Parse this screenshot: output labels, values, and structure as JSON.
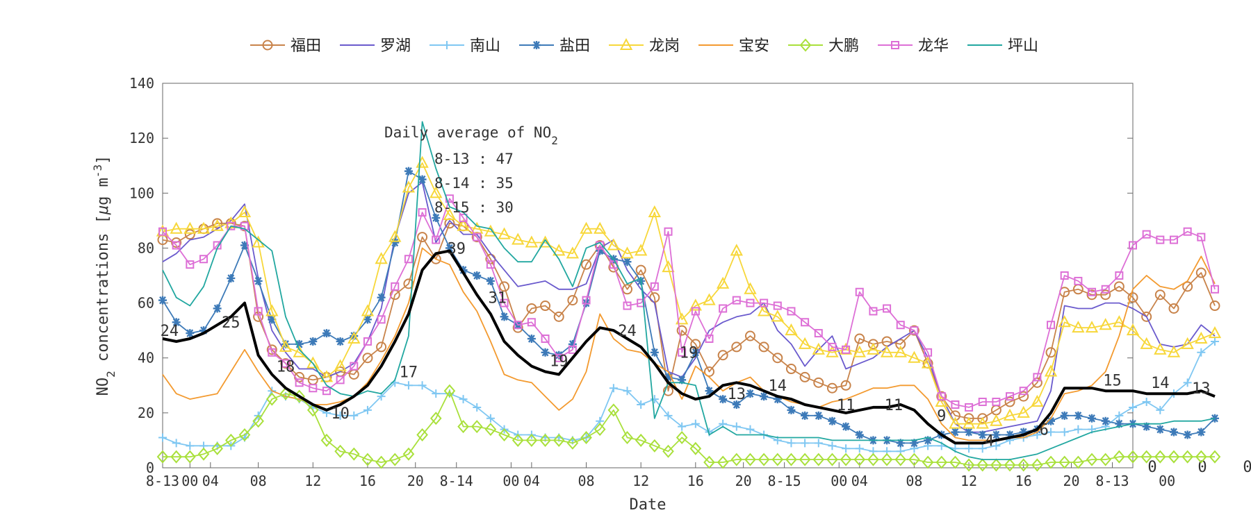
{
  "chart_data": {
    "type": "line",
    "xlabel": "Date",
    "ylabel": "NO2 concentrations [μg m-3]",
    "ylabel_parts": {
      "pre": "NO",
      "sub": "2",
      "mid": " concentrations [",
      "mu": "μ",
      "mid2": "g m",
      "sup": "-3",
      "post": "]"
    },
    "ylim": [
      0,
      140
    ],
    "xlim": [
      0,
      71
    ],
    "x_unit": "hours since 8-13 00",
    "yticks": [
      0,
      20,
      40,
      60,
      80,
      100,
      120,
      140
    ],
    "xtick_labels": [
      {
        "x": 0,
        "label": "8-13"
      },
      {
        "x": 2,
        "label": "00"
      },
      {
        "x": 3.5,
        "label": "04"
      },
      {
        "x": 7,
        "label": "08"
      },
      {
        "x": 11,
        "label": "12"
      },
      {
        "x": 15,
        "label": "16"
      },
      {
        "x": 18.5,
        "label": "20"
      },
      {
        "x": 21.5,
        "label": "8-14"
      },
      {
        "x": 25.5,
        "label": "00"
      },
      {
        "x": 27,
        "label": "04"
      },
      {
        "x": 31,
        "label": "08"
      },
      {
        "x": 35,
        "label": "12"
      },
      {
        "x": 39,
        "label": "16"
      },
      {
        "x": 42.5,
        "label": "20"
      },
      {
        "x": 45.5,
        "label": "8-15"
      },
      {
        "x": 49.5,
        "label": "00"
      },
      {
        "x": 51,
        "label": "04"
      },
      {
        "x": 55,
        "label": "08"
      },
      {
        "x": 59,
        "label": "12"
      },
      {
        "x": 63,
        "label": "16"
      },
      {
        "x": 66.5,
        "label": "20"
      },
      {
        "x": 69.5,
        "label": "8-13"
      },
      {
        "x": 73.5,
        "label": "00"
      }
    ],
    "right_labels": [
      "0",
      "0",
      "0"
    ],
    "grid": false,
    "legend_position": "top",
    "annotation": {
      "title": "Daily average of NO",
      "title_sub": "2",
      "lines": [
        "8-13 : 47",
        "8-14 : 35",
        "8-15 : 30"
      ]
    },
    "series": [
      {
        "name": "福田",
        "color": "#c8834a",
        "marker": "circle",
        "marker_every": 1,
        "values": [
          83,
          82,
          85,
          87,
          89,
          89,
          88,
          55,
          43,
          38,
          33,
          32,
          33,
          35,
          34,
          40,
          44,
          63,
          67,
          84,
          76,
          89,
          88,
          84,
          76,
          66,
          51,
          58,
          59,
          55,
          61,
          74,
          81,
          73,
          65,
          72,
          62,
          28,
          50,
          45,
          35,
          41,
          44,
          48,
          44,
          40,
          36,
          33,
          31,
          29,
          30,
          47,
          45,
          46,
          45,
          50,
          38,
          26,
          19,
          18,
          18,
          21,
          24,
          26,
          31,
          42,
          64,
          65,
          63,
          63,
          66,
          62,
          55,
          63,
          58,
          66,
          71,
          59
        ]
      },
      {
        "name": "罗湖",
        "color": "#6a5acd",
        "marker": "none",
        "values": [
          75,
          78,
          83,
          84,
          87,
          90,
          96,
          69,
          50,
          42,
          36,
          36,
          33,
          35,
          38,
          46,
          58,
          84,
          100,
          104,
          82,
          90,
          85,
          85,
          78,
          72,
          66,
          67,
          68,
          65,
          65,
          67,
          80,
          83,
          72,
          65,
          60,
          35,
          33,
          40,
          50,
          53,
          55,
          56,
          60,
          50,
          45,
          37,
          43,
          48,
          36,
          38,
          40,
          44,
          47,
          50,
          40,
          26,
          16,
          13,
          13,
          14,
          15,
          16,
          17,
          28,
          59,
          58,
          58,
          60,
          60,
          58,
          55,
          45,
          44,
          45,
          52,
          48
        ]
      },
      {
        "name": "南山",
        "color": "#7fc7f2",
        "marker": "plus",
        "marker_every": 1,
        "values": [
          11,
          9,
          8,
          8,
          8,
          8,
          11,
          19,
          28,
          26,
          25,
          22,
          20,
          19,
          19,
          21,
          26,
          31,
          30,
          30,
          27,
          27,
          25,
          22,
          18,
          14,
          12,
          12,
          11,
          11,
          10,
          11,
          17,
          29,
          28,
          23,
          25,
          19,
          15,
          16,
          13,
          16,
          15,
          14,
          12,
          10,
          9,
          9,
          9,
          8,
          7,
          7,
          6,
          6,
          6,
          7,
          8,
          8,
          7,
          7,
          7,
          8,
          10,
          11,
          12,
          13,
          13,
          14,
          14,
          15,
          19,
          22,
          24,
          21,
          27,
          31,
          42,
          46
        ]
      },
      {
        "name": "盐田",
        "color": "#3d7ab8",
        "marker": "star",
        "marker_every": 1,
        "values": [
          61,
          53,
          49,
          50,
          58,
          69,
          81,
          68,
          54,
          45,
          45,
          46,
          49,
          46,
          48,
          54,
          62,
          82,
          108,
          105,
          91,
          80,
          72,
          70,
          68,
          55,
          52,
          47,
          42,
          41,
          45,
          60,
          79,
          76,
          75,
          68,
          42,
          33,
          32,
          42,
          28,
          25,
          23,
          27,
          26,
          25,
          21,
          19,
          19,
          17,
          15,
          12,
          10,
          10,
          9,
          9,
          10,
          12,
          13,
          13,
          12,
          12,
          12,
          13,
          14,
          17,
          19,
          19,
          18,
          17,
          16,
          16,
          15,
          14,
          13,
          12,
          13,
          18
        ]
      },
      {
        "name": "龙岗",
        "color": "#f7d73a",
        "marker": "triangle",
        "marker_every": 1,
        "values": [
          86,
          87,
          87,
          87,
          88,
          89,
          93,
          82,
          57,
          44,
          42,
          38,
          33,
          37,
          47,
          57,
          76,
          84,
          102,
          111,
          100,
          92,
          88,
          87,
          86,
          85,
          83,
          82,
          82,
          79,
          78,
          87,
          87,
          81,
          78,
          79,
          93,
          73,
          54,
          59,
          61,
          67,
          79,
          65,
          57,
          55,
          50,
          45,
          43,
          42,
          43,
          42,
          43,
          42,
          42,
          40,
          38,
          24,
          16,
          16,
          16,
          17,
          19,
          20,
          24,
          35,
          53,
          51,
          51,
          52,
          53,
          50,
          45,
          43,
          42,
          45,
          47,
          49
        ]
      },
      {
        "name": "宝安",
        "color": "#f39a2f",
        "marker": "none",
        "values": [
          34,
          27,
          25,
          26,
          27,
          35,
          43,
          35,
          28,
          26,
          25,
          23,
          23,
          24,
          26,
          31,
          39,
          48,
          60,
          80,
          76,
          74,
          64,
          57,
          46,
          34,
          32,
          31,
          26,
          21,
          25,
          35,
          56,
          47,
          43,
          42,
          38,
          35,
          25,
          37,
          33,
          28,
          31,
          33,
          28,
          26,
          24,
          23,
          22,
          24,
          25,
          27,
          29,
          29,
          30,
          30,
          25,
          16,
          11,
          10,
          10,
          10,
          11,
          11,
          13,
          18,
          27,
          28,
          30,
          35,
          48,
          65,
          70,
          66,
          65,
          68,
          77,
          67
        ]
      },
      {
        "name": "大鹏",
        "color": "#a9e03b",
        "marker": "diamond",
        "marker_every": 1,
        "values": [
          4,
          4,
          4,
          5,
          7,
          10,
          12,
          17,
          25,
          27,
          26,
          21,
          10,
          6,
          5,
          3,
          2,
          3,
          5,
          12,
          18,
          28,
          15,
          15,
          14,
          12,
          10,
          10,
          10,
          10,
          9,
          11,
          14,
          21,
          11,
          10,
          8,
          6,
          11,
          7,
          2,
          2,
          3,
          3,
          3,
          3,
          3,
          3,
          3,
          3,
          3,
          3,
          3,
          3,
          3,
          3,
          2,
          2,
          2,
          1,
          1,
          1,
          1,
          1,
          1,
          2,
          2,
          2,
          3,
          3,
          4,
          4,
          4,
          4,
          4,
          4,
          4,
          4
        ]
      },
      {
        "name": "龙华",
        "color": "#dd6fd6",
        "marker": "square",
        "marker_every": 1,
        "values": [
          86,
          81,
          74,
          76,
          81,
          88,
          88,
          57,
          42,
          38,
          31,
          29,
          28,
          32,
          37,
          46,
          54,
          66,
          76,
          93,
          83,
          98,
          91,
          84,
          74,
          60,
          52,
          53,
          47,
          40,
          43,
          61,
          81,
          74,
          59,
          60,
          66,
          86,
          42,
          57,
          47,
          58,
          61,
          60,
          60,
          59,
          57,
          53,
          49,
          44,
          43,
          64,
          57,
          58,
          52,
          50,
          42,
          26,
          23,
          22,
          24,
          24,
          26,
          28,
          33,
          52,
          70,
          68,
          64,
          65,
          70,
          81,
          85,
          83,
          83,
          86,
          84,
          65
        ]
      },
      {
        "name": "坪山",
        "color": "#21a7a0",
        "marker": "none",
        "values": [
          72,
          62,
          59,
          66,
          80,
          88,
          87,
          83,
          79,
          55,
          43,
          38,
          30,
          27,
          26,
          28,
          27,
          32,
          48,
          126,
          109,
          95,
          93,
          88,
          87,
          80,
          75,
          75,
          83,
          76,
          66,
          80,
          82,
          76,
          67,
          69,
          18,
          31,
          31,
          30,
          12,
          15,
          12,
          12,
          12,
          11,
          11,
          11,
          11,
          10,
          10,
          10,
          10,
          10,
          10,
          10,
          11,
          9,
          6,
          4,
          3,
          3,
          3,
          4,
          5,
          7,
          9,
          11,
          13,
          14,
          15,
          16,
          16,
          16,
          17,
          17,
          17,
          18
        ]
      },
      {
        "name": "",
        "color": "#000000",
        "marker": "none",
        "bold": true,
        "values": [
          47,
          46,
          47,
          49,
          52,
          55,
          60,
          41,
          34,
          29,
          26,
          23,
          21,
          23,
          26,
          30,
          37,
          46,
          56,
          72,
          78,
          79,
          71,
          63,
          56,
          46,
          41,
          37,
          35,
          34,
          40,
          46,
          51,
          50,
          47,
          44,
          38,
          31,
          27,
          25,
          26,
          30,
          31,
          30,
          28,
          26,
          25,
          23,
          22,
          21,
          20,
          21,
          22,
          22,
          23,
          21,
          16,
          12,
          9,
          9,
          9,
          10,
          11,
          12,
          14,
          20,
          29,
          29,
          29,
          28,
          28,
          28,
          27,
          27,
          27,
          27,
          28,
          26
        ]
      }
    ],
    "value_labels": [
      {
        "x": 0.5,
        "y": 48,
        "text": "24"
      },
      {
        "x": 5,
        "y": 51,
        "text": "25"
      },
      {
        "x": 9,
        "y": 35,
        "text": "18"
      },
      {
        "x": 13,
        "y": 18,
        "text": "10"
      },
      {
        "x": 18,
        "y": 33,
        "text": "17"
      },
      {
        "x": 21.5,
        "y": 78,
        "text": "39"
      },
      {
        "x": 24.5,
        "y": 60,
        "text": "31"
      },
      {
        "x": 29,
        "y": 37,
        "text": "19"
      },
      {
        "x": 34,
        "y": 48,
        "text": "24"
      },
      {
        "x": 38.5,
        "y": 40,
        "text": "19"
      },
      {
        "x": 42,
        "y": 25,
        "text": "13"
      },
      {
        "x": 45,
        "y": 28,
        "text": "14"
      },
      {
        "x": 50,
        "y": 21,
        "text": "11"
      },
      {
        "x": 53.5,
        "y": 21,
        "text": "11"
      },
      {
        "x": 57,
        "y": 17,
        "text": "9"
      },
      {
        "x": 60.5,
        "y": 8,
        "text": "4"
      },
      {
        "x": 64.5,
        "y": 12,
        "text": "6"
      },
      {
        "x": 69.5,
        "y": 30,
        "text": "15"
      },
      {
        "x": 73,
        "y": 29,
        "text": "14"
      },
      {
        "x": 76,
        "y": 27,
        "text": "13"
      }
    ]
  }
}
